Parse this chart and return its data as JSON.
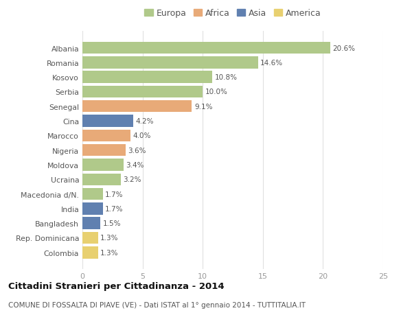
{
  "countries": [
    "Albania",
    "Romania",
    "Kosovo",
    "Serbia",
    "Senegal",
    "Cina",
    "Marocco",
    "Nigeria",
    "Moldova",
    "Ucraina",
    "Macedonia d/N.",
    "India",
    "Bangladesh",
    "Rep. Dominicana",
    "Colombia"
  ],
  "values": [
    20.6,
    14.6,
    10.8,
    10.0,
    9.1,
    4.2,
    4.0,
    3.6,
    3.4,
    3.2,
    1.7,
    1.7,
    1.5,
    1.3,
    1.3
  ],
  "continents": [
    "Europa",
    "Europa",
    "Europa",
    "Europa",
    "Africa",
    "Asia",
    "Africa",
    "Africa",
    "Europa",
    "Europa",
    "Europa",
    "Asia",
    "Asia",
    "America",
    "America"
  ],
  "colors": {
    "Europa": "#b0c98a",
    "Africa": "#e8aa78",
    "Asia": "#6080b0",
    "America": "#e8d070"
  },
  "xlim": [
    0,
    25
  ],
  "xticks": [
    0,
    5,
    10,
    15,
    20,
    25
  ],
  "title": "Cittadini Stranieri per Cittadinanza - 2014",
  "subtitle": "COMUNE DI FOSSALTA DI PIAVE (VE) - Dati ISTAT al 1° gennaio 2014 - TUTTITALIA.IT",
  "bg_color": "#ffffff",
  "bar_height": 0.82,
  "label_fontsize": 7.5,
  "ytick_fontsize": 7.8,
  "xtick_fontsize": 8.0,
  "legend_fontsize": 9.0,
  "title_fontsize": 9.5,
  "subtitle_fontsize": 7.5
}
